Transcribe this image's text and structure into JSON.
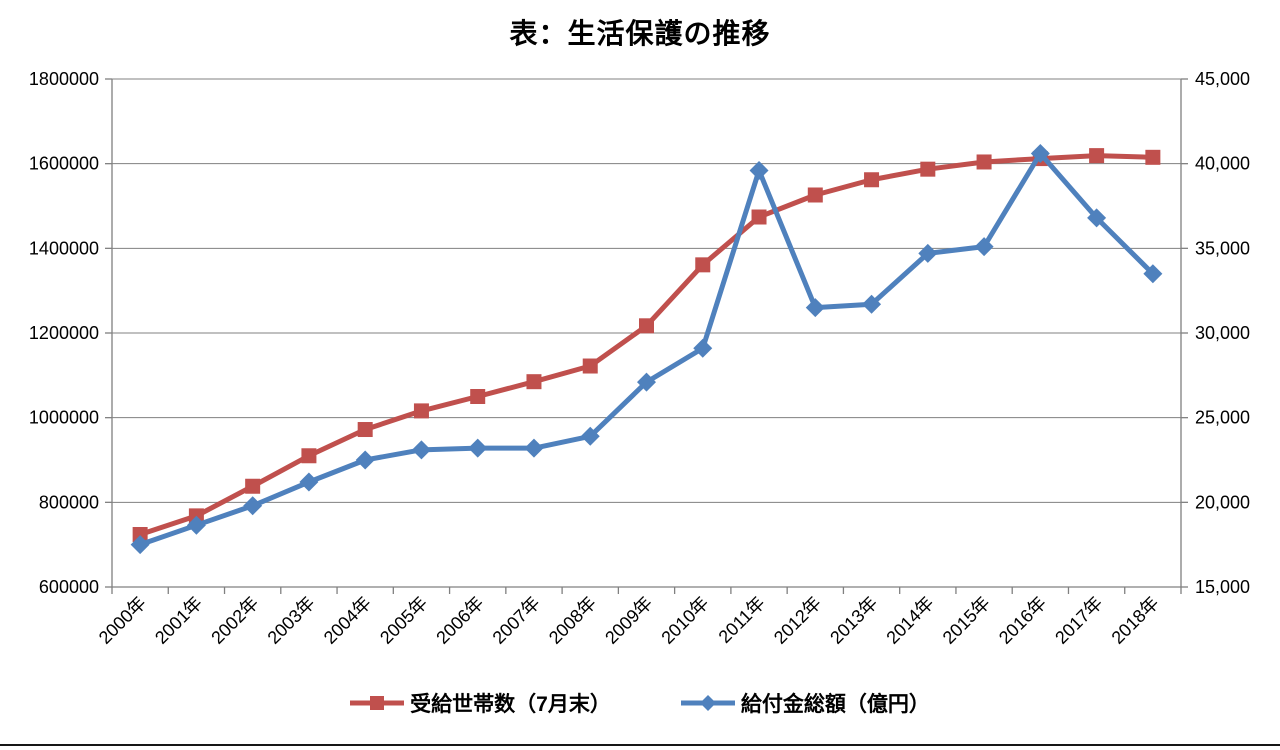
{
  "page": {
    "background": "#ffffff",
    "bottom_rule_color": "#161616"
  },
  "chart_data": {
    "type": "line",
    "title": "表：生活保護の推移",
    "categories": [
      "2000年",
      "2001年",
      "2002年",
      "2003年",
      "2004年",
      "2005年",
      "2006年",
      "2007年",
      "2008年",
      "2009年",
      "2010年",
      "2011年",
      "2012年",
      "2013年",
      "2014年",
      "2015年",
      "2016年",
      "2017年",
      "2018年"
    ],
    "series": [
      {
        "name": "受給世帯数（7月末）",
        "axis": "left",
        "color": "#c0504d",
        "marker": "square",
        "values": [
          724000,
          768000,
          838000,
          910000,
          972000,
          1016000,
          1050000,
          1085000,
          1122000,
          1217000,
          1361000,
          1474000,
          1526000,
          1562000,
          1587000,
          1604000,
          1612000,
          1619000,
          1615000
        ]
      },
      {
        "name": "給付金総額（億円）",
        "axis": "right",
        "color": "#4f81bd",
        "marker": "diamond",
        "values": [
          17500,
          18650,
          19800,
          21200,
          22500,
          23100,
          23200,
          23200,
          23900,
          27100,
          29100,
          39600,
          31500,
          31700,
          34700,
          35100,
          40600,
          36800,
          33500
        ]
      }
    ],
    "left_axis": {
      "min": 600000,
      "max": 1800000,
      "step": 200000,
      "tick_labels": [
        "600000",
        "800000",
        "1000000",
        "1200000",
        "1400000",
        "1600000",
        "1800000"
      ]
    },
    "right_axis": {
      "min": 15000,
      "max": 45000,
      "step": 5000,
      "tick_labels": [
        "15,000",
        "20,000",
        "25,000",
        "30,000",
        "35,000",
        "40,000",
        "45,000"
      ]
    },
    "grid": true,
    "grid_color": "#808080",
    "axis_color": "#808080",
    "legend_position": "bottom"
  }
}
